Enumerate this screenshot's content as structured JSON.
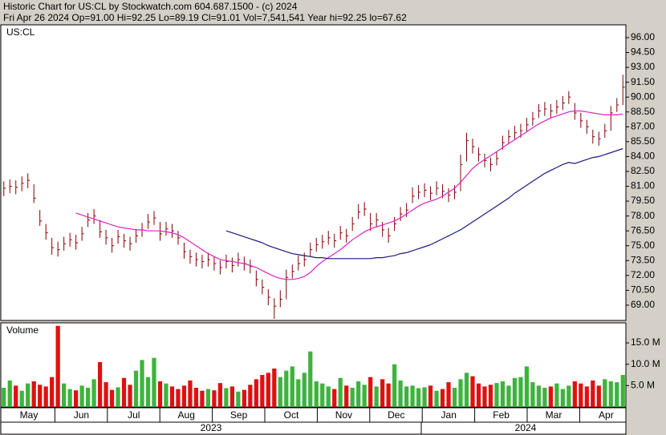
{
  "chart_data": {
    "type": "ohlc",
    "title": "Historic Chart for US:CL by Stockwatch.com 604.687.1500 - (c) 2024",
    "subtitle": "Fri Apr 26 2024   Op=91.00  Hi=92.25  Lo=89.19  Cl=91.01  Vol=7,541,541  Year hi=92.25  lo=67.62",
    "symbol": "US:CL",
    "bar_color": "#800000",
    "price": {
      "high": [
        81.5,
        81.7,
        81.6,
        82.0,
        82.3,
        81.2,
        78.6,
        77.2,
        75.8,
        75.4,
        75.9,
        76.3,
        76.1,
        76.9,
        78.3,
        78.7,
        77.6,
        76.6,
        75.8,
        76.6,
        76.2,
        75.9,
        76.7,
        77.3,
        78.2,
        78.5,
        77.4,
        77.4,
        77.2,
        76.5,
        75.3,
        74.6,
        74.3,
        74.1,
        74.3,
        73.9,
        73.5,
        74.1,
        73.8,
        74.3,
        73.9,
        73.6,
        72.5,
        71.6,
        70.6,
        69.7,
        70.5,
        72.6,
        73.1,
        74.0,
        74.3,
        75.3,
        75.8,
        76.1,
        76.5,
        76.2,
        77.0,
        76.7,
        77.9,
        79.2,
        79.4,
        78.3,
        78.3,
        77.4,
        76.8,
        77.9,
        78.9,
        79.3,
        80.9,
        81.1,
        81.3,
        81.0,
        81.5,
        81.2,
        80.8,
        81.1,
        84.2,
        86.4,
        85.8,
        84.9,
        84.3,
        83.9,
        84.5,
        86.1,
        86.7,
        87.1,
        87.3,
        87.9,
        88.5,
        89.3,
        89.5,
        89.3,
        89.7,
        90.1,
        90.6,
        89.4,
        88.4,
        87.7,
        86.7,
        86.5,
        87.3,
        89.1,
        89.9,
        92.25
      ],
      "low": [
        80.0,
        80.3,
        80.2,
        80.5,
        80.8,
        79.3,
        77.0,
        75.6,
        74.1,
        73.9,
        74.5,
        74.9,
        74.6,
        75.5,
        76.9,
        77.2,
        75.8,
        75.1,
        74.3,
        75.2,
        74.8,
        74.5,
        75.3,
        75.9,
        76.7,
        77.1,
        75.5,
        76.0,
        75.8,
        75.1,
        73.7,
        73.2,
        72.9,
        72.7,
        72.9,
        72.5,
        72.1,
        72.7,
        72.3,
        72.9,
        72.5,
        72.2,
        70.9,
        70.1,
        69.0,
        67.62,
        68.8,
        69.6,
        71.7,
        72.5,
        72.9,
        73.9,
        74.4,
        74.7,
        75.1,
        74.8,
        75.6,
        75.3,
        76.5,
        77.7,
        78.0,
        76.5,
        76.9,
        75.9,
        75.3,
        76.5,
        77.5,
        77.9,
        79.3,
        79.7,
        79.9,
        79.6,
        80.1,
        79.8,
        79.4,
        79.7,
        80.5,
        83.5,
        84.3,
        83.5,
        82.9,
        82.5,
        83.1,
        84.7,
        85.3,
        85.7,
        85.9,
        86.5,
        87.1,
        87.9,
        88.1,
        87.9,
        88.3,
        88.7,
        89.3,
        87.7,
        86.9,
        86.3,
        85.3,
        85.1,
        85.9,
        86.6,
        88.5,
        89.19
      ],
      "close": [
        80.8,
        81.0,
        80.9,
        81.3,
        81.6,
        79.8,
        77.5,
        76.3,
        74.8,
        74.6,
        75.2,
        75.6,
        75.3,
        76.2,
        77.6,
        78.0,
        76.4,
        75.8,
        75.0,
        75.9,
        75.5,
        75.2,
        76.0,
        76.6,
        77.4,
        77.8,
        76.2,
        76.7,
        76.5,
        75.8,
        74.4,
        73.9,
        73.6,
        73.4,
        73.6,
        73.2,
        72.8,
        73.4,
        73.0,
        73.6,
        73.2,
        72.9,
        71.6,
        70.8,
        69.8,
        68.9,
        69.6,
        71.8,
        72.4,
        73.2,
        73.6,
        74.6,
        75.1,
        75.4,
        75.8,
        75.5,
        76.3,
        76.0,
        77.2,
        78.4,
        78.7,
        77.2,
        77.6,
        76.6,
        76.0,
        77.2,
        78.2,
        78.6,
        80.0,
        80.4,
        80.6,
        80.3,
        80.8,
        80.5,
        80.1,
        80.4,
        83.2,
        85.6,
        85.0,
        84.2,
        83.6,
        83.2,
        83.8,
        85.4,
        86.0,
        86.4,
        86.6,
        87.2,
        87.8,
        88.6,
        88.8,
        88.6,
        89.0,
        89.4,
        90.0,
        88.4,
        87.6,
        87.0,
        86.0,
        85.8,
        86.6,
        88.4,
        89.2,
        91.01
      ]
    },
    "moving_averages": [
      {
        "color": "#e020c0",
        "values": [
          null,
          null,
          null,
          null,
          null,
          null,
          null,
          null,
          null,
          null,
          null,
          null,
          78.3,
          78.1,
          77.9,
          77.7,
          77.5,
          77.3,
          77.1,
          76.9,
          76.8,
          76.7,
          76.6,
          76.6,
          76.5,
          76.5,
          76.5,
          76.4,
          76.3,
          76.1,
          75.8,
          75.4,
          75.0,
          74.6,
          74.2,
          73.9,
          73.6,
          73.5,
          73.4,
          73.3,
          73.2,
          73.0,
          72.8,
          72.5,
          72.2,
          71.9,
          71.7,
          71.6,
          71.6,
          71.7,
          71.9,
          72.3,
          72.9,
          73.4,
          73.8,
          74.2,
          74.6,
          75.1,
          75.6,
          76.0,
          76.4,
          76.7,
          76.9,
          77.1,
          77.3,
          77.5,
          77.8,
          78.2,
          78.6,
          79.0,
          79.3,
          79.5,
          79.7,
          80.0,
          80.4,
          80.8,
          81.4,
          82.1,
          82.8,
          83.3,
          83.7,
          84.1,
          84.5,
          84.9,
          85.3,
          85.7,
          86.1,
          86.5,
          86.9,
          87.3,
          87.6,
          87.9,
          88.1,
          88.3,
          88.5,
          88.6,
          88.6,
          88.5,
          88.4,
          88.3,
          88.2,
          88.2,
          88.2,
          88.3
        ]
      },
      {
        "color": "#1a1a80",
        "values": [
          null,
          null,
          null,
          null,
          null,
          null,
          null,
          null,
          null,
          null,
          null,
          null,
          null,
          null,
          null,
          null,
          null,
          null,
          null,
          null,
          null,
          null,
          null,
          null,
          null,
          null,
          null,
          null,
          null,
          null,
          null,
          null,
          null,
          null,
          null,
          null,
          null,
          76.5,
          76.3,
          76.1,
          75.9,
          75.7,
          75.5,
          75.3,
          75.0,
          74.8,
          74.6,
          74.4,
          74.2,
          74.1,
          74.0,
          73.9,
          73.8,
          73.8,
          73.7,
          73.7,
          73.7,
          73.7,
          73.7,
          73.7,
          73.7,
          73.7,
          73.8,
          73.8,
          73.9,
          74.0,
          74.2,
          74.3,
          74.5,
          74.7,
          74.9,
          75.1,
          75.4,
          75.7,
          76.0,
          76.3,
          76.6,
          77.0,
          77.4,
          77.8,
          78.2,
          78.6,
          79.0,
          79.4,
          79.8,
          80.3,
          80.7,
          81.1,
          81.5,
          81.9,
          82.3,
          82.6,
          82.9,
          83.2,
          83.4,
          83.3,
          83.5,
          83.7,
          83.9,
          84.0,
          84.2,
          84.4,
          84.6,
          84.8
        ]
      }
    ],
    "ylim": [
      67.46,
      97.29
    ],
    "yticks": [
      {
        "value": 69,
        "label": "69.00"
      },
      {
        "value": 70.5,
        "label": "70.50"
      },
      {
        "value": 72,
        "label": "72.00"
      },
      {
        "value": 73.5,
        "label": "73.50"
      },
      {
        "value": 75,
        "label": "75.00"
      },
      {
        "value": 76.5,
        "label": "76.50"
      },
      {
        "value": 78,
        "label": "78.00"
      },
      {
        "value": 79.5,
        "label": "79.50"
      },
      {
        "value": 81,
        "label": "81.00"
      },
      {
        "value": 82.5,
        "label": "82.50"
      },
      {
        "value": 84,
        "label": "84.00"
      },
      {
        "value": 85.5,
        "label": "85.50"
      },
      {
        "value": 87,
        "label": "87.00"
      },
      {
        "value": 88.5,
        "label": "88.50"
      },
      {
        "value": 90,
        "label": "90.00"
      },
      {
        "value": 91.5,
        "label": "91.50"
      },
      {
        "value": 93,
        "label": "93.00"
      },
      {
        "value": 94.5,
        "label": "94.50"
      },
      {
        "value": 96,
        "label": "96.00"
      }
    ],
    "volume": {
      "label": "Volume",
      "up_color": "#3cb43c",
      "down_color": "#e01010",
      "values": [
        4.5,
        6.2,
        5.0,
        3.8,
        5.5,
        6.0,
        5.2,
        4.8,
        7.0,
        19.0,
        5.5,
        4.2,
        3.9,
        5.0,
        4.5,
        6.5,
        10.5,
        5.8,
        4.0,
        4.6,
        6.8,
        5.2,
        8.5,
        11.0,
        7.0,
        11.5,
        6.0,
        5.5,
        4.8,
        4.2,
        5.0,
        6.2,
        4.5,
        3.8,
        4.2,
        3.9,
        5.6,
        4.4,
        4.8,
        3.6,
        4.0,
        5.2,
        6.5,
        7.5,
        8.0,
        9.0,
        7.0,
        8.5,
        9.5,
        6.5,
        8.0,
        13.0,
        6.0,
        5.5,
        4.8,
        4.2,
        6.8,
        5.0,
        4.5,
        6.0,
        5.2,
        7.0,
        4.8,
        6.5,
        5.5,
        10.0,
        6.2,
        4.8,
        5.0,
        4.4,
        4.6,
        5.0,
        3.8,
        4.2,
        5.8,
        4.5,
        6.5,
        8.0,
        7.2,
        5.5,
        4.8,
        5.2,
        5.6,
        6.0,
        5.0,
        6.8,
        7.0,
        9.5,
        5.8,
        5.0,
        4.5,
        4.8,
        5.5,
        4.2,
        5.0,
        6.0,
        5.5,
        4.8,
        6.2,
        5.0,
        6.5,
        6.0,
        5.8,
        7.5
      ],
      "ylim": [
        0,
        19.7
      ],
      "yticks": [
        {
          "value": 5,
          "label": "5.0 M"
        },
        {
          "value": 10,
          "label": "10.0 M"
        },
        {
          "value": 15,
          "label": "15.0 M"
        }
      ]
    },
    "months": [
      "May",
      "Jun",
      "Jul",
      "Aug",
      "Sep",
      "Oct",
      "Nov",
      "Dec",
      "Jan",
      "Feb",
      "Mar",
      "Apr"
    ],
    "years": [
      "2023",
      "2024"
    ]
  }
}
